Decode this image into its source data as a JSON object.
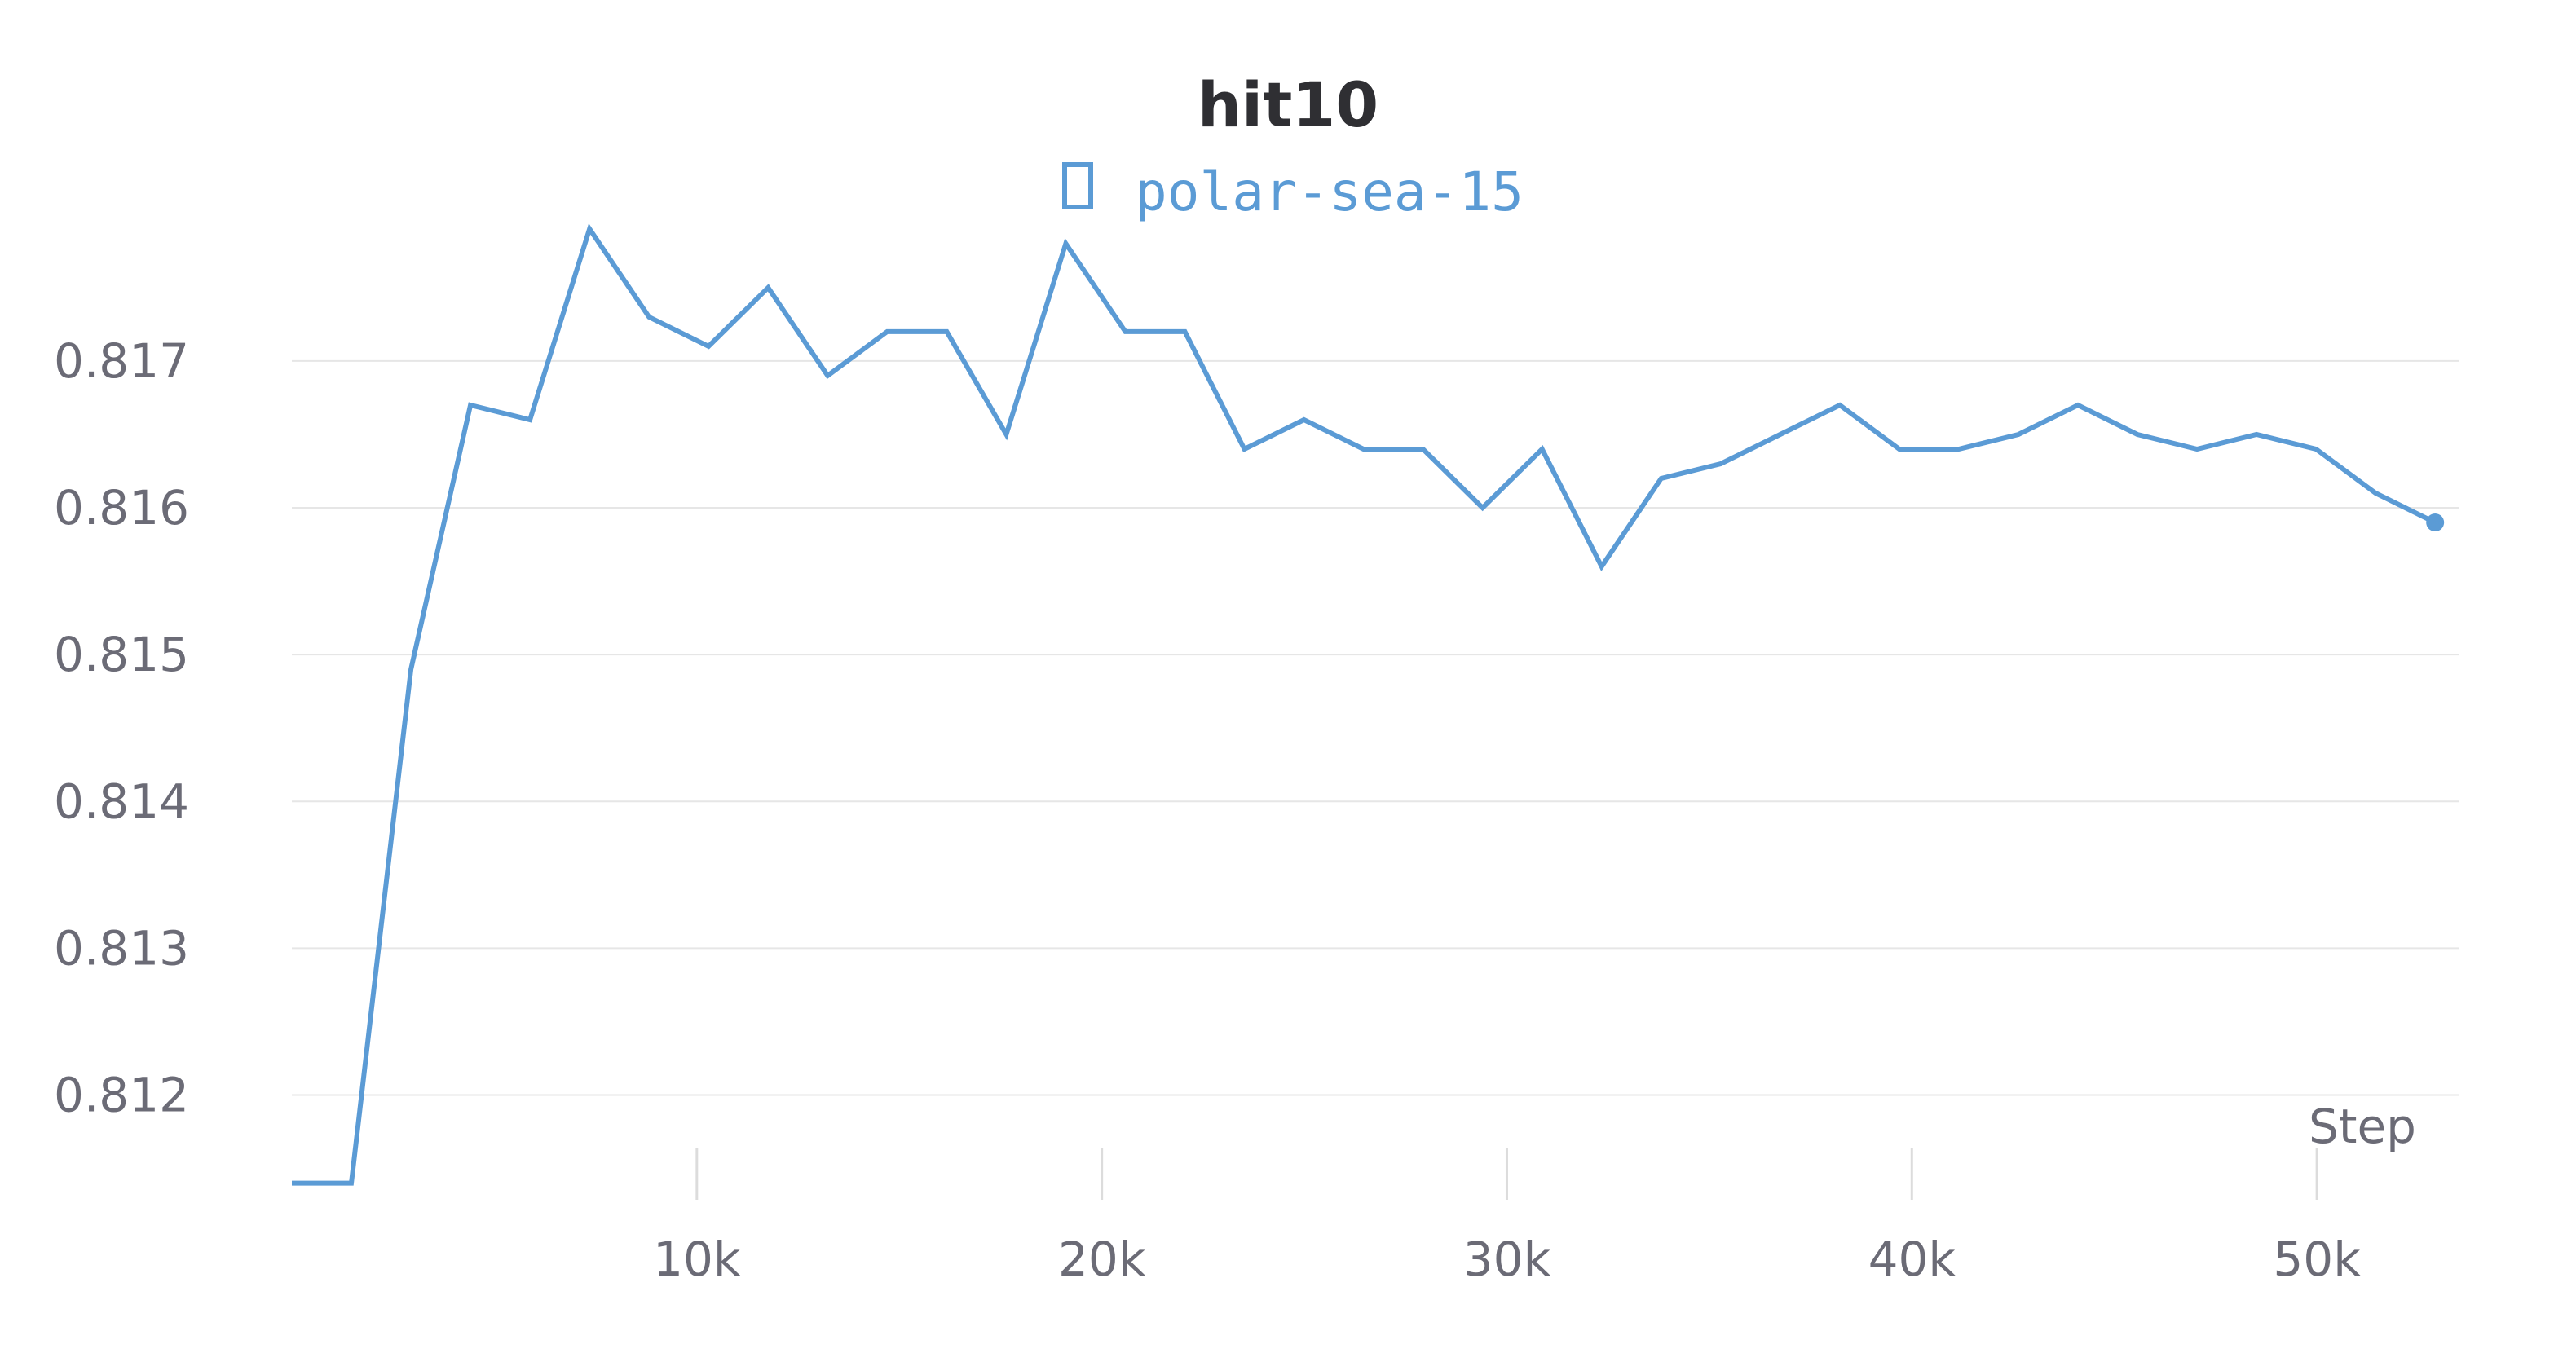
{
  "chart_data": {
    "type": "line",
    "title": "hit10",
    "xlabel": "Step",
    "ylabel": "",
    "xlim": [
      0,
      53500
    ],
    "ylim": [
      0.81142,
      0.81796
    ],
    "x_ticks": [
      10000,
      20000,
      30000,
      40000,
      50000
    ],
    "x_tick_labels": [
      "10k",
      "20k",
      "30k",
      "40k",
      "50k"
    ],
    "y_ticks": [
      0.812,
      0.813,
      0.814,
      0.815,
      0.816,
      0.817
    ],
    "y_tick_labels": [
      "0.812",
      "0.813",
      "0.814",
      "0.815",
      "0.816",
      "0.817"
    ],
    "grid": true,
    "legend": {
      "position": "top-center",
      "icon": "square-outline-icon"
    },
    "series": [
      {
        "name": "polar-sea-15",
        "color": "#5b9bd5",
        "x": [
          0,
          1470,
          2940,
          4410,
          5880,
          7350,
          8820,
          10290,
          11760,
          13230,
          14700,
          16170,
          17640,
          19110,
          20580,
          22050,
          23520,
          24990,
          26460,
          27930,
          29400,
          30870,
          32340,
          33810,
          35280,
          36750,
          38220,
          39690,
          41160,
          42630,
          44100,
          45570,
          47040,
          48510,
          49980,
          51450,
          52920
        ],
        "values": [
          0.8114,
          0.8114,
          0.8149,
          0.8167,
          0.8166,
          0.8179,
          0.8173,
          0.8171,
          0.8175,
          0.8169,
          0.8172,
          0.8172,
          0.8165,
          0.8178,
          0.8172,
          0.8172,
          0.8164,
          0.8166,
          0.8164,
          0.8164,
          0.816,
          0.8164,
          0.8156,
          0.8162,
          0.8163,
          0.8165,
          0.8167,
          0.8164,
          0.8164,
          0.8165,
          0.8167,
          0.8165,
          0.8164,
          0.8165,
          0.8164,
          0.8161,
          0.8159
        ]
      }
    ]
  }
}
